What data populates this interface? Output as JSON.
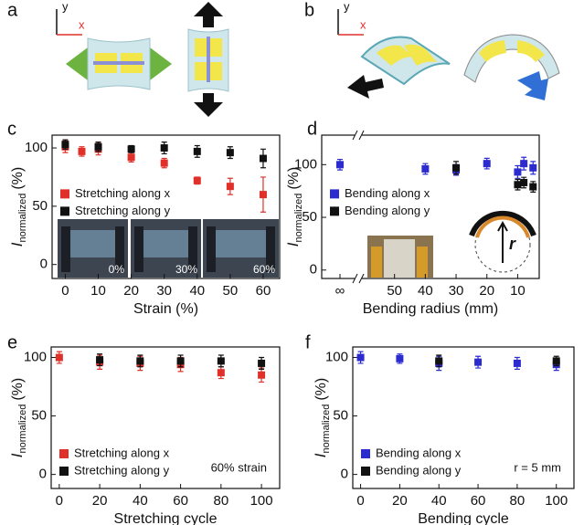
{
  "schematics": [
    {
      "label": "a",
      "axis_y": "y",
      "axis_x": "x"
    },
    {
      "label": "b",
      "axis_y": "y",
      "axis_x": "x"
    }
  ],
  "chart_data": [
    {
      "type": "scatter",
      "panel": "c",
      "xlabel": "Strain (%)",
      "ylabel": "I",
      "ylabel_subscript": "normalized",
      "ylabel_unit": "(%)",
      "xlim": [
        -4,
        65
      ],
      "xticks": [
        0,
        10,
        20,
        30,
        40,
        50,
        60
      ],
      "ylim": [
        -12,
        111
      ],
      "yticks": [
        0,
        50,
        100
      ],
      "legend": "center left",
      "inset_labels": [
        "0%",
        "30%",
        "60%"
      ],
      "series": [
        {
          "name": "Stretching along x",
          "color": "#e0302a",
          "x": [
            0,
            5,
            10,
            20,
            30,
            40,
            50,
            60
          ],
          "values": [
            101,
            97,
            99,
            92,
            87,
            72,
            67,
            60
          ],
          "errors": [
            5,
            4,
            5,
            4,
            4,
            3,
            7,
            15
          ]
        },
        {
          "name": "Stretching along y",
          "color": "#111111",
          "x": [
            0,
            10,
            20,
            30,
            40,
            50,
            60
          ],
          "values": [
            103,
            101,
            99,
            100,
            97,
            96,
            91
          ],
          "errors": [
            4,
            4,
            3,
            5,
            5,
            5,
            8
          ]
        }
      ]
    },
    {
      "type": "scatter",
      "panel": "d",
      "xlabel": "Bending radius (mm)",
      "ylabel": "I",
      "ylabel_subscript": "normalized",
      "ylabel_unit": "(%)",
      "xlim": [
        60,
        3
      ],
      "xticks": [
        {
          "value": null,
          "label": "∞"
        },
        50,
        40,
        30,
        20,
        10
      ],
      "ylim": [
        -8,
        128
      ],
      "yticks": [
        0,
        50,
        100
      ],
      "legend": "center left",
      "inset_label": "r",
      "series": [
        {
          "name": "Bending along x",
          "color": "#2b2bd0",
          "x": [
            null,
            40,
            30,
            20,
            10,
            8,
            5
          ],
          "values": [
            100,
            96,
            95,
            101,
            93,
            101,
            97
          ],
          "errors": [
            5,
            5,
            5,
            5,
            6,
            6,
            6
          ]
        },
        {
          "name": "Bending along y",
          "color": "#111111",
          "x": [
            30,
            10,
            8,
            5
          ],
          "values": [
            97,
            81,
            83,
            79
          ],
          "errors": [
            6,
            5,
            5,
            5
          ]
        }
      ]
    },
    {
      "type": "scatter",
      "panel": "e",
      "xlabel": "Stretching cycle",
      "ylabel": "I",
      "ylabel_subscript": "normalized",
      "ylabel_unit": "(%)",
      "xlim": [
        -4,
        109
      ],
      "xticks": [
        0,
        20,
        40,
        60,
        80,
        100
      ],
      "ylim": [
        -12,
        109
      ],
      "yticks": [
        0,
        50,
        100
      ],
      "legend": "lower left",
      "annotation": "60% strain",
      "series": [
        {
          "name": "Stretching along x",
          "color": "#e0302a",
          "x": [
            0,
            20,
            40,
            60,
            80,
            100
          ],
          "values": [
            100,
            96,
            95,
            94,
            87,
            85
          ],
          "errors": [
            5,
            6,
            6,
            6,
            5,
            6
          ]
        },
        {
          "name": "Stretching along y",
          "color": "#111111",
          "x": [
            20,
            40,
            60,
            80,
            100
          ],
          "values": [
            98,
            97,
            97,
            97,
            95
          ],
          "errors": [
            5,
            5,
            5,
            5,
            5
          ]
        }
      ]
    },
    {
      "type": "scatter",
      "panel": "f",
      "xlabel": "Bending cycle",
      "ylabel": "I",
      "ylabel_subscript": "normalized",
      "ylabel_unit": "(%)",
      "xlim": [
        -4,
        109
      ],
      "xticks": [
        0,
        20,
        40,
        60,
        80,
        100
      ],
      "ylim": [
        -12,
        109
      ],
      "yticks": [
        0,
        50,
        100
      ],
      "legend": "lower left",
      "annotation": "r = 5 mm",
      "series": [
        {
          "name": "Bending along x",
          "color": "#2b2bd0",
          "x": [
            0,
            20,
            40,
            60,
            80,
            100
          ],
          "values": [
            100,
            99,
            95,
            96,
            95,
            94
          ],
          "errors": [
            5,
            4,
            6,
            5,
            5,
            5
          ]
        },
        {
          "name": "Bending along y",
          "color": "#111111",
          "x": [
            40,
            100
          ],
          "values": [
            97,
            97
          ],
          "errors": [
            5,
            4
          ]
        }
      ]
    }
  ]
}
